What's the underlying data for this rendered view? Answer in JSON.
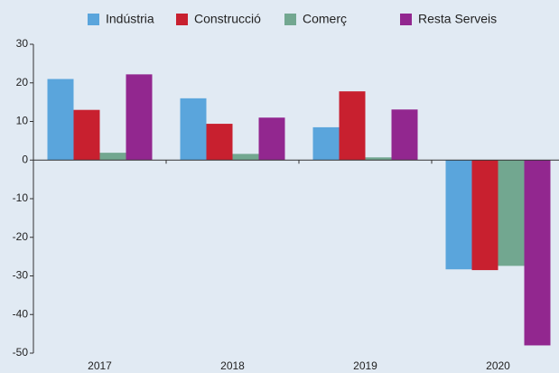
{
  "chart_data": {
    "type": "bar",
    "categories": [
      "2017",
      "2018",
      "2019",
      "2020"
    ],
    "series": [
      {
        "name": "Indústria",
        "color": "#5aa5dc",
        "values": [
          21,
          16,
          8.5,
          -28.3
        ]
      },
      {
        "name": "Construcció",
        "color": "#c8202f",
        "values": [
          13,
          9.4,
          17.8,
          -28.5
        ]
      },
      {
        "name": "Comerç",
        "color": "#72a790",
        "values": [
          1.9,
          1.6,
          0.7,
          -27.4
        ]
      },
      {
        "name": "Resta Serveis",
        "color": "#92278f",
        "values": [
          22.2,
          11,
          13.1,
          -48
        ]
      }
    ],
    "ylim": [
      -50,
      30
    ],
    "yticks": [
      -50,
      -40,
      -30,
      -20,
      -10,
      0,
      10,
      20,
      30
    ],
    "legend": "top"
  }
}
